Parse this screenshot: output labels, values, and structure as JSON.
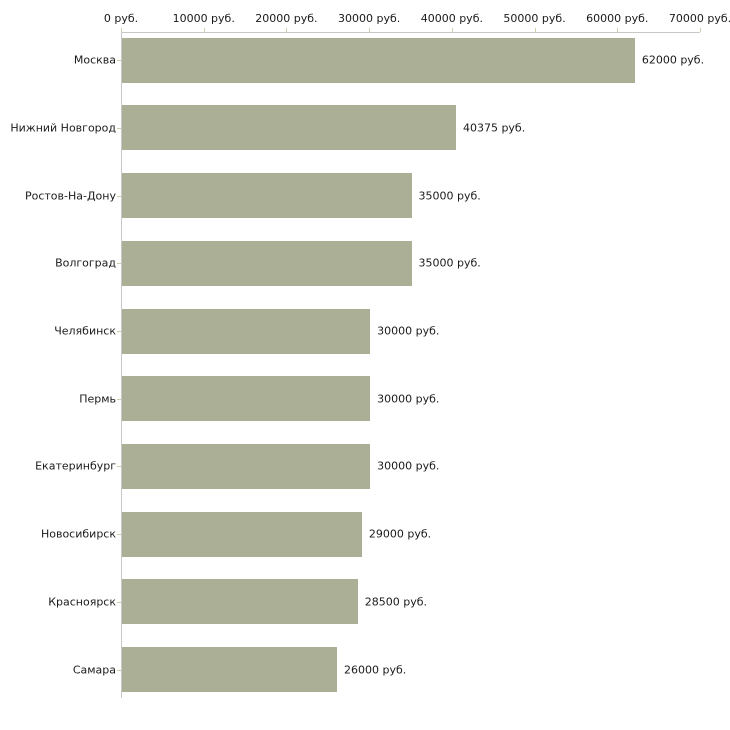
{
  "chart_data": {
    "type": "bar",
    "orientation": "horizontal",
    "title": "",
    "categories": [
      "Москва",
      "Нижний Новгород",
      "Ростов-На-Дону",
      "Волгоград",
      "Челябинск",
      "Пермь",
      "Екатеринбург",
      "Новосибирск",
      "Красноярск",
      "Самара"
    ],
    "values": [
      62000,
      40375,
      35000,
      35000,
      30000,
      30000,
      30000,
      29000,
      28500,
      26000
    ],
    "value_labels": [
      "62000 руб.",
      "40375 руб.",
      "35000 руб.",
      "35000 руб.",
      "30000 руб.",
      "30000 руб.",
      "30000 руб.",
      "29000 руб.",
      "28500 руб.",
      "26000 руб."
    ],
    "x_ticks": [
      0,
      10000,
      20000,
      30000,
      40000,
      50000,
      60000,
      70000
    ],
    "x_tick_labels": [
      "0 руб.",
      "10000 руб.",
      "20000 руб.",
      "30000 руб.",
      "40000 руб.",
      "50000 руб.",
      "60000 руб.",
      "70000 руб."
    ],
    "xlim": [
      0,
      70000
    ],
    "unit": "руб.",
    "xlabel": "",
    "ylabel": "",
    "grid": false,
    "legend": false,
    "axis_position": "top",
    "colors": {
      "bar": "#aaaf96",
      "axis_line": "#c8c8c8",
      "tick_mark": "#cfcfa7",
      "text": "#1b1b1b",
      "background": "#ffffff"
    }
  }
}
